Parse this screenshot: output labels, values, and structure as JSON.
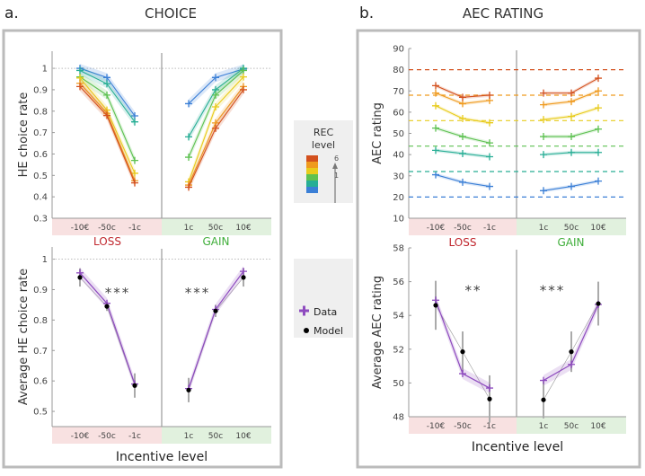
{
  "panel_a": {
    "letter": "a.",
    "title": "CHOICE"
  },
  "panel_b": {
    "letter": "b.",
    "title": "AEC RATING"
  },
  "legend": {
    "title_line1": "REC",
    "title_line2": "level",
    "max_label": "6",
    "min_label": "1",
    "data_label": "Data",
    "model_label": "Model",
    "level_colors": [
      "#3b7fd6",
      "#27ae95",
      "#5dc151",
      "#e8cb1c",
      "#ef9a1e",
      "#d3501d"
    ],
    "data_color": "#8e4bbf",
    "model_color": "#000000"
  },
  "chart_data": [
    {
      "id": "choice_by_level",
      "type": "line",
      "ylabel": "HE choice rate",
      "categories": [
        "-10€",
        "-50c",
        "-1c",
        "1c",
        "50c",
        "10€"
      ],
      "ylim": [
        0.3,
        1.08
      ],
      "yticks": [
        0.3,
        0.4,
        0.5,
        0.6,
        0.7,
        0.8,
        0.9,
        1
      ],
      "reference_line": 1,
      "series": [
        {
          "level": 1,
          "values": [
            1.0,
            0.957,
            0.778,
            0.835,
            0.957,
            0.997
          ]
        },
        {
          "level": 2,
          "values": [
            0.99,
            0.928,
            0.75,
            0.68,
            0.9,
            1.0
          ]
        },
        {
          "level": 3,
          "values": [
            0.96,
            0.875,
            0.57,
            0.585,
            0.875,
            0.99
          ]
        },
        {
          "level": 4,
          "values": [
            0.955,
            0.805,
            0.51,
            0.47,
            0.82,
            0.96
          ]
        },
        {
          "level": 5,
          "values": [
            0.93,
            0.79,
            0.475,
            0.455,
            0.745,
            0.915
          ]
        },
        {
          "level": 6,
          "values": [
            0.915,
            0.78,
            0.465,
            0.445,
            0.72,
            0.9
          ]
        }
      ]
    },
    {
      "id": "choice_average",
      "type": "line",
      "ylabel": "Average HE choice rate",
      "xlabel": "Incentive level",
      "categories": [
        "-10€",
        "-50c",
        "-1c",
        "1c",
        "50c",
        "10€"
      ],
      "ylim": [
        0.45,
        1.04
      ],
      "yticks": [
        0.5,
        0.6,
        0.7,
        0.8,
        0.9,
        1
      ],
      "reference_line": 1,
      "group_labels": [
        "LOSS",
        "GAIN"
      ],
      "significance": [
        "***",
        "***"
      ],
      "series": [
        {
          "name": "Data",
          "values": [
            0.955,
            0.855,
            0.59,
            0.575,
            0.835,
            0.96
          ]
        },
        {
          "name": "Model",
          "values": [
            0.94,
            0.845,
            0.585,
            0.57,
            0.83,
            0.94
          ],
          "error": [
            0.03,
            0.015,
            0.04,
            0.04,
            0.02,
            0.03
          ]
        }
      ]
    },
    {
      "id": "aec_by_level",
      "type": "line",
      "ylabel": "AEC rating",
      "categories": [
        "-10€",
        "-50c",
        "-1c",
        "1c",
        "50c",
        "10€"
      ],
      "ylim": [
        10,
        90
      ],
      "yticks": [
        10,
        20,
        30,
        40,
        50,
        60,
        70,
        80,
        90
      ],
      "series": [
        {
          "level": 1,
          "reference": 20,
          "values": [
            30.5,
            27,
            25,
            23,
            25,
            27.5
          ]
        },
        {
          "level": 2,
          "reference": 32,
          "values": [
            42,
            40.5,
            39,
            40,
            41,
            41
          ]
        },
        {
          "level": 3,
          "reference": 44,
          "values": [
            52.5,
            48.5,
            45.5,
            48.5,
            48.5,
            52
          ]
        },
        {
          "level": 4,
          "reference": 56,
          "values": [
            63,
            57,
            55,
            56.5,
            58,
            62
          ]
        },
        {
          "level": 5,
          "reference": 68,
          "values": [
            69,
            64,
            65.5,
            63.5,
            65,
            70
          ]
        },
        {
          "level": 6,
          "reference": 80,
          "values": [
            72.5,
            67,
            68,
            69,
            69,
            76
          ]
        }
      ]
    },
    {
      "id": "aec_average",
      "type": "line",
      "ylabel": "Average AEC rating",
      "xlabel": "Incentive level",
      "categories": [
        "-10€",
        "-50c",
        "-1c",
        "1c",
        "50c",
        "10€"
      ],
      "ylim": [
        48,
        58
      ],
      "yticks": [
        48,
        50,
        52,
        54,
        56,
        58
      ],
      "group_labels": [
        "LOSS",
        "GAIN"
      ],
      "significance": [
        "**",
        "***"
      ],
      "series": [
        {
          "name": "Data",
          "values": [
            54.9,
            50.55,
            49.7,
            50.15,
            51.1,
            54.65
          ]
        },
        {
          "name": "Model",
          "values": [
            54.6,
            51.85,
            49.05,
            49.0,
            51.85,
            54.7
          ],
          "error": [
            1.45,
            1.2,
            1.4,
            1.1,
            1.2,
            1.3
          ]
        }
      ]
    }
  ]
}
